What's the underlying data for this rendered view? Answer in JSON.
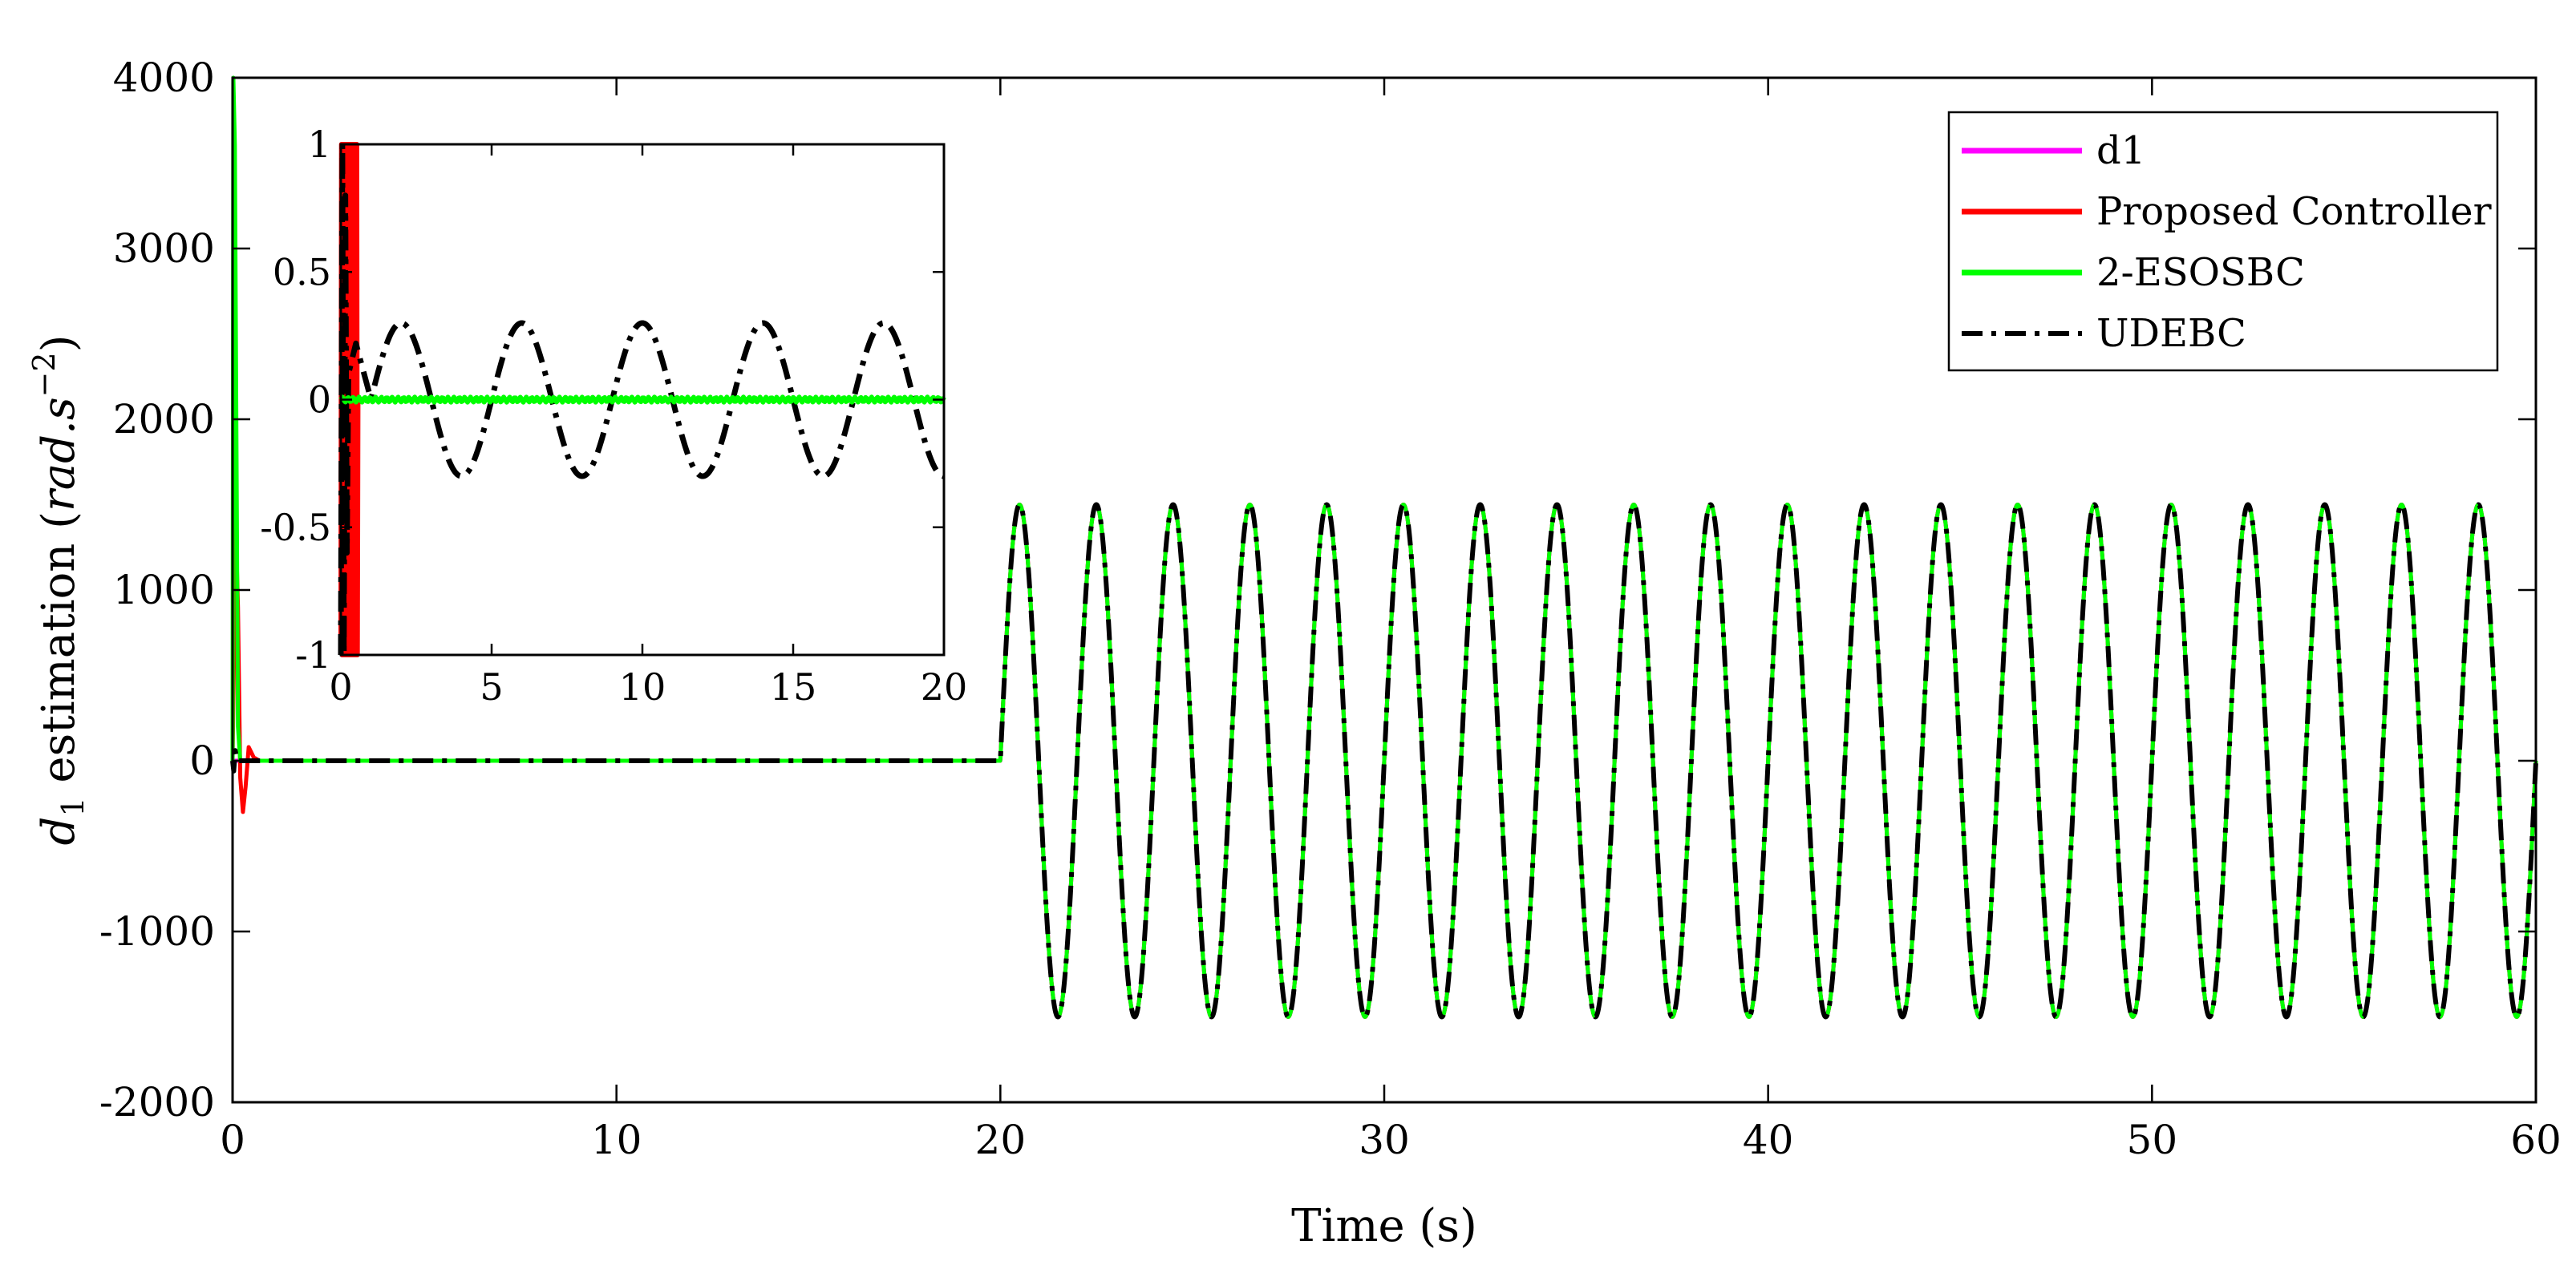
{
  "chart_data": {
    "type": "line",
    "title": "",
    "xlabel": "Time (s)",
    "ylabel_parts": {
      "var": "d",
      "sub": "1",
      "mid": " estimation (",
      "unit": "rad.s",
      "exp": "−2",
      "close": ")"
    },
    "xlim": [
      0,
      60
    ],
    "ylim": [
      -2000,
      4000
    ],
    "x_ticks": [
      0,
      10,
      20,
      30,
      40,
      50,
      60
    ],
    "x_tick_labels": [
      "0",
      "10",
      "20",
      "30",
      "40",
      "50",
      "60"
    ],
    "y_ticks": [
      -2000,
      -1000,
      0,
      1000,
      2000,
      3000,
      4000
    ],
    "y_tick_labels": [
      "-2000",
      "-1000",
      "0",
      "1000",
      "2000",
      "3000",
      "4000"
    ],
    "grid": false,
    "legend_position": "top-right",
    "series": [
      {
        "name": "d1",
        "color": "#ff00ff",
        "style": "solid",
        "piecewise": [
          {
            "from": 0,
            "to": 20,
            "model": "constant",
            "value": 0
          },
          {
            "from": 20,
            "to": 60,
            "model": "sine",
            "amplitude": 1500,
            "period": 2
          }
        ]
      },
      {
        "name": "Proposed Controller",
        "color": "#ff0000",
        "style": "solid",
        "transient": [
          [
            0,
            0
          ],
          [
            0.08,
            1400
          ],
          [
            0.14,
            900
          ],
          [
            0.2,
            -100
          ],
          [
            0.27,
            -300
          ],
          [
            0.34,
            -150
          ],
          [
            0.42,
            80
          ],
          [
            0.55,
            20
          ],
          [
            0.7,
            0
          ]
        ],
        "piecewise": [
          {
            "from": 0.7,
            "to": 20,
            "model": "constant",
            "value": 0
          },
          {
            "from": 20,
            "to": 60,
            "model": "sine",
            "amplitude": 1500,
            "period": 2
          }
        ]
      },
      {
        "name": "2-ESOSBC",
        "color": "#00ff00",
        "style": "solid",
        "transient": [
          [
            0,
            0
          ],
          [
            0.02,
            4000
          ],
          [
            0.06,
            3600
          ],
          [
            0.1,
            1900
          ],
          [
            0.14,
            200
          ],
          [
            0.2,
            0
          ]
        ],
        "piecewise": [
          {
            "from": 0.2,
            "to": 20,
            "model": "constant",
            "value": 0
          },
          {
            "from": 20,
            "to": 60,
            "model": "sine",
            "amplitude": 1500,
            "period": 2
          }
        ]
      },
      {
        "name": "UDEBC",
        "color": "#000000",
        "style": "dashdot",
        "transient": [
          [
            0,
            0
          ],
          [
            0.03,
            -60
          ],
          [
            0.07,
            60
          ],
          [
            0.12,
            0
          ]
        ],
        "piecewise": [
          {
            "from": 0.12,
            "to": 20,
            "model": "constant",
            "value": 0
          },
          {
            "from": 20,
            "to": 60,
            "model": "sine",
            "amplitude": 1500,
            "period": 2
          }
        ]
      }
    ],
    "inset": {
      "xlim": [
        0,
        20
      ],
      "ylim": [
        -1,
        1
      ],
      "x_ticks": [
        0,
        5,
        10,
        15,
        20
      ],
      "x_tick_labels": [
        "0",
        "5",
        "10",
        "15",
        "20"
      ],
      "y_ticks": [
        -1,
        -0.5,
        0,
        0.5,
        1
      ],
      "y_tick_labels": [
        "-1",
        "-0.5",
        "0",
        "0.5",
        "1"
      ],
      "series": [
        {
          "name": "d1",
          "model": "constant",
          "value": 0
        },
        {
          "name": "Proposed Controller",
          "model": "oscillating-transient",
          "until": 0.55,
          "amplitude": 1,
          "then": 0
        },
        {
          "name": "2-ESOSBC",
          "model": "noisy-constant",
          "value": 0,
          "noise": 0.01
        },
        {
          "name": "UDEBC",
          "model": "sine-after-transient",
          "amplitude": 0.3,
          "period": 4,
          "phase_deg": -90,
          "start": 0.3,
          "first_peak": [
            0.5,
            0.22
          ]
        }
      ]
    }
  }
}
